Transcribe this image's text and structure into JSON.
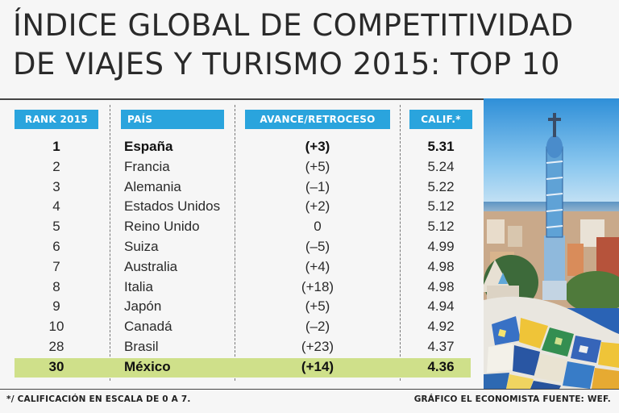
{
  "title": {
    "line1": "ÍNDICE GLOBAL DE COMPETITIVIDAD",
    "line2": "DE VIAJES Y TURISMO 2015: TOP 10"
  },
  "chart_data": {
    "type": "table",
    "title": "ÍNDICE GLOBAL DE COMPETITIVIDAD DE VIAJES Y TURISMO 2015: TOP 10",
    "columns": [
      "RANK 2015",
      "PAÍS",
      "AVANCE/RETROCESO",
      "CALIF.*"
    ],
    "rows": [
      {
        "rank": "1",
        "pais": "España",
        "avance": "(+3)",
        "calif": "5.31",
        "bold": true
      },
      {
        "rank": "2",
        "pais": "Francia",
        "avance": "(+5)",
        "calif": "5.24",
        "bold": false
      },
      {
        "rank": "3",
        "pais": "Alemania",
        "avance": "(–1)",
        "calif": "5.22",
        "bold": false
      },
      {
        "rank": "4",
        "pais": "Estados Unidos",
        "avance": "(+2)",
        "calif": "5.12",
        "bold": false
      },
      {
        "rank": "5",
        "pais": "Reino Unido",
        "avance": "0",
        "calif": "5.12",
        "bold": false
      },
      {
        "rank": "6",
        "pais": "Suiza",
        "avance": "(–5)",
        "calif": "4.99",
        "bold": false
      },
      {
        "rank": "7",
        "pais": "Australia",
        "avance": "(+4)",
        "calif": "4.98",
        "bold": false
      },
      {
        "rank": "8",
        "pais": "Italia",
        "avance": "(+18)",
        "calif": "4.98",
        "bold": false
      },
      {
        "rank": "9",
        "pais": "Japón",
        "avance": "(+5)",
        "calif": "4.94",
        "bold": false
      },
      {
        "rank": "10",
        "pais": "Canadá",
        "avance": "(–2)",
        "calif": "4.92",
        "bold": false
      },
      {
        "rank": "28",
        "pais": "Brasil",
        "avance": "(+23)",
        "calif": "4.37",
        "bold": false
      },
      {
        "rank": "30",
        "pais": "México",
        "avance": "(+14)",
        "calif": "4.36",
        "bold": true,
        "highlight": true
      }
    ]
  },
  "footnote": "*/ CALIFICACIÓN EN ESCALA DE 0 A 7.",
  "credit": "GRÁFICO EL ECONOMISTA FUENTE: WEF.",
  "colors": {
    "header_blue": "#2aa4dd",
    "highlight_green": "#cfe08a",
    "background": "#f6f6f6"
  },
  "photo": {
    "icon": "park-guell-tower-photo"
  }
}
